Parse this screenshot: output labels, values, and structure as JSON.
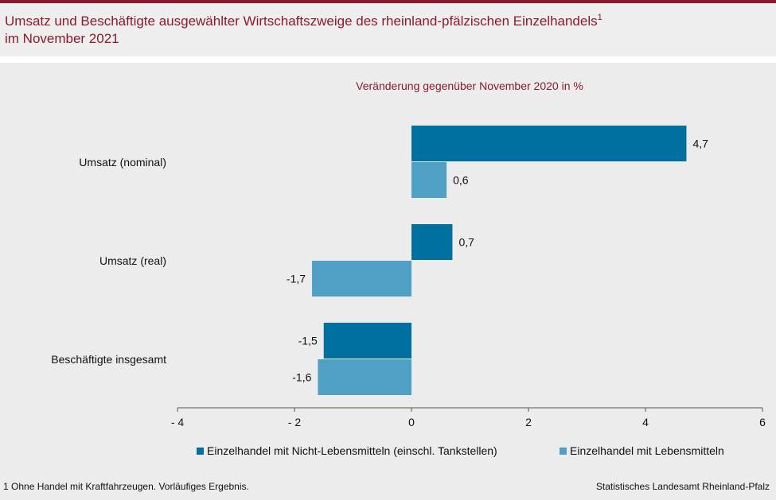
{
  "header": {
    "title_line1": "Umsatz und Beschäftigte ausgewählter Wirtschaftszweige des rheinland-pfälzischen Einzelhandels",
    "title_sup": "1",
    "title_line2": "im November 2021"
  },
  "colors": {
    "accent": "#8b1a2c",
    "series1": "#0070a0",
    "series2": "#4fa0c4"
  },
  "chart_data": {
    "type": "bar",
    "orientation": "horizontal",
    "title": "Umsatz und Beschäftigte ausgewählter Wirtschaftszweige des rheinland-pfälzischen Einzelhandels im November 2021",
    "subtitle": "Veränderung gegenüber November 2020 in %",
    "categories": [
      "Umsatz (nominal)",
      "Umsatz (real)",
      "Beschäftigte insgesamt"
    ],
    "series": [
      {
        "name": "Einzelhandel mit Nicht-Lebensmitteln (einschl. Tankstellen)",
        "values": [
          4.7,
          0.7,
          -1.5
        ],
        "labels": [
          "4,7",
          "0,7",
          "-1,5"
        ]
      },
      {
        "name": "Einzelhandel mit Lebensmitteln",
        "values": [
          0.6,
          -1.7,
          -1.6
        ],
        "labels": [
          "0,6",
          "-1,7",
          "-1,6"
        ]
      }
    ],
    "xlim": [
      -4,
      6
    ],
    "xticks": [
      -4,
      -2,
      0,
      2,
      4,
      6
    ],
    "xtick_labels": [
      "- 4",
      "- 2",
      "0",
      "2",
      "4",
      "6"
    ],
    "legend": "bottom"
  },
  "footer": {
    "footnote": "1 Ohne Handel mit Kraftfahrzeugen. Vorläufiges Ergebnis.",
    "source": "Statistisches Landesamt Rheinland-Pfalz"
  }
}
